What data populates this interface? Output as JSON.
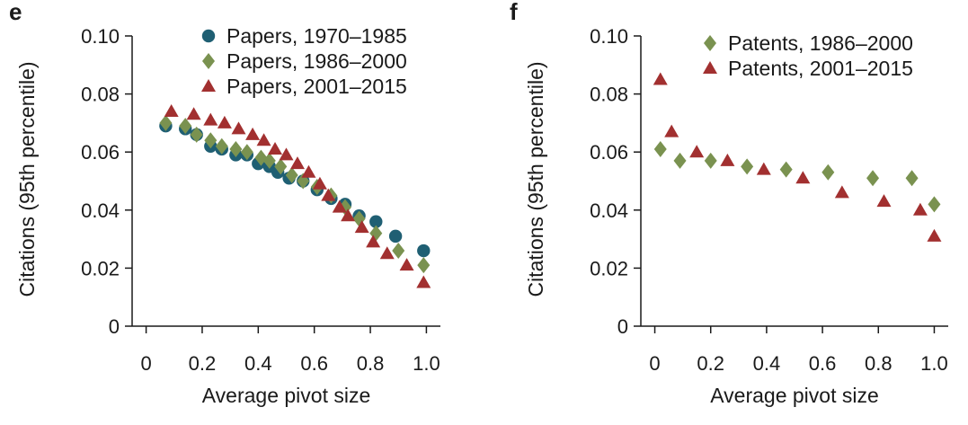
{
  "panels": [
    {
      "letter": "e",
      "chart_data": {
        "type": "scatter",
        "title": "",
        "xlabel": "Average pivot size",
        "ylabel": "Citations (95th percentile)",
        "xlim": [
          -0.05,
          1.05
        ],
        "ylim": [
          0,
          0.1
        ],
        "xticks": [
          "0",
          "0.2",
          "0.4",
          "0.6",
          "0.8",
          "1.0"
        ],
        "yticks": [
          "0",
          "0.02",
          "0.04",
          "0.06",
          "0.08",
          "0.10"
        ],
        "legend_position": "top-right",
        "series": [
          {
            "name": "Papers, 1970–1985",
            "marker": "circle",
            "color": "#1f5f73",
            "points": [
              [
                0.07,
                0.069
              ],
              [
                0.14,
                0.068
              ],
              [
                0.18,
                0.066
              ],
              [
                0.23,
                0.062
              ],
              [
                0.27,
                0.061
              ],
              [
                0.32,
                0.059
              ],
              [
                0.36,
                0.059
              ],
              [
                0.4,
                0.056
              ],
              [
                0.44,
                0.055
              ],
              [
                0.47,
                0.053
              ],
              [
                0.51,
                0.051
              ],
              [
                0.56,
                0.05
              ],
              [
                0.61,
                0.047
              ],
              [
                0.66,
                0.044
              ],
              [
                0.71,
                0.042
              ],
              [
                0.76,
                0.038
              ],
              [
                0.82,
                0.036
              ],
              [
                0.89,
                0.031
              ],
              [
                0.99,
                0.026
              ]
            ]
          },
          {
            "name": "Papers, 1986–2000",
            "marker": "diamond",
            "color": "#7a9250",
            "points": [
              [
                0.07,
                0.07
              ],
              [
                0.14,
                0.069
              ],
              [
                0.18,
                0.066
              ],
              [
                0.23,
                0.064
              ],
              [
                0.27,
                0.062
              ],
              [
                0.32,
                0.061
              ],
              [
                0.36,
                0.06
              ],
              [
                0.41,
                0.058
              ],
              [
                0.44,
                0.057
              ],
              [
                0.48,
                0.055
              ],
              [
                0.52,
                0.052
              ],
              [
                0.56,
                0.05
              ],
              [
                0.61,
                0.048
              ],
              [
                0.66,
                0.045
              ],
              [
                0.71,
                0.041
              ],
              [
                0.76,
                0.037
              ],
              [
                0.82,
                0.032
              ],
              [
                0.9,
                0.026
              ],
              [
                0.99,
                0.021
              ]
            ]
          },
          {
            "name": "Papers, 2001–2015",
            "marker": "triangle",
            "color": "#a23030",
            "points": [
              [
                0.09,
                0.074
              ],
              [
                0.17,
                0.073
              ],
              [
                0.23,
                0.071
              ],
              [
                0.28,
                0.07
              ],
              [
                0.33,
                0.068
              ],
              [
                0.38,
                0.066
              ],
              [
                0.42,
                0.064
              ],
              [
                0.46,
                0.061
              ],
              [
                0.5,
                0.059
              ],
              [
                0.54,
                0.056
              ],
              [
                0.58,
                0.053
              ],
              [
                0.62,
                0.049
              ],
              [
                0.65,
                0.045
              ],
              [
                0.69,
                0.041
              ],
              [
                0.72,
                0.038
              ],
              [
                0.77,
                0.034
              ],
              [
                0.81,
                0.029
              ],
              [
                0.86,
                0.025
              ],
              [
                0.93,
                0.021
              ],
              [
                0.99,
                0.015
              ]
            ]
          }
        ]
      }
    },
    {
      "letter": "f",
      "chart_data": {
        "type": "scatter",
        "title": "",
        "xlabel": "Average pivot size",
        "ylabel": "Citations (95th percentile)",
        "xlim": [
          -0.05,
          1.05
        ],
        "ylim": [
          0,
          0.1
        ],
        "xticks": [
          "0",
          "0.2",
          "0.4",
          "0.6",
          "0.8",
          "1.0"
        ],
        "yticks": [
          "0",
          "0.02",
          "0.04",
          "0.06",
          "0.08",
          "0.10"
        ],
        "legend_position": "top-right",
        "series": [
          {
            "name": "Patents, 1986–2000",
            "marker": "diamond",
            "color": "#7a9250",
            "points": [
              [
                0.02,
                0.061
              ],
              [
                0.09,
                0.057
              ],
              [
                0.2,
                0.057
              ],
              [
                0.33,
                0.055
              ],
              [
                0.47,
                0.054
              ],
              [
                0.62,
                0.053
              ],
              [
                0.78,
                0.051
              ],
              [
                0.92,
                0.051
              ],
              [
                1.0,
                0.042
              ]
            ]
          },
          {
            "name": "Patents, 2001–2015",
            "marker": "triangle",
            "color": "#a23030",
            "points": [
              [
                0.02,
                0.085
              ],
              [
                0.06,
                0.067
              ],
              [
                0.15,
                0.06
              ],
              [
                0.26,
                0.057
              ],
              [
                0.39,
                0.054
              ],
              [
                0.53,
                0.051
              ],
              [
                0.67,
                0.046
              ],
              [
                0.82,
                0.043
              ],
              [
                0.95,
                0.04
              ],
              [
                1.0,
                0.031
              ]
            ]
          }
        ]
      }
    }
  ]
}
